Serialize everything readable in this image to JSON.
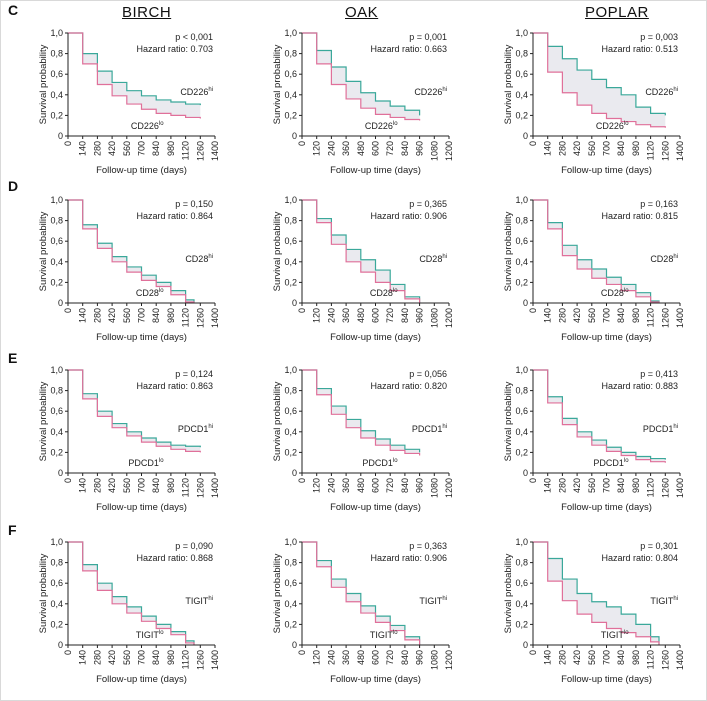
{
  "column_titles": [
    "BIRCH",
    "OAK",
    "POPLAR"
  ],
  "row_letters": [
    "C",
    "D",
    "E",
    "F"
  ],
  "colors": {
    "hi": "#3aa89a",
    "lo": "#e0709a",
    "band": "#dcdce4",
    "axis": "#222222"
  },
  "chart_data": [
    {
      "type": "line",
      "panel": "C-BIRCH",
      "ylabel": "Survival probability",
      "xlabel": "Follow-up time (days)",
      "xticks": [
        0,
        140,
        280,
        420,
        560,
        700,
        840,
        980,
        1120,
        1260,
        1400
      ],
      "yticks": [
        0,
        0.2,
        0.4,
        0.6,
        0.8,
        1.0
      ],
      "xlim": [
        0,
        1400
      ],
      "ylim": [
        0,
        1.0
      ],
      "p_text": "p  < 0,001",
      "hr_text": "Hazard ratio: 0.703",
      "hi_base": "CD226",
      "hi_sup": "hi",
      "lo_base": "CD226",
      "lo_sup": "lo",
      "series": [
        {
          "name": "CD226hi",
          "x": [
            0,
            140,
            280,
            420,
            560,
            700,
            840,
            980,
            1120,
            1260
          ],
          "y": [
            1.0,
            0.8,
            0.63,
            0.52,
            0.44,
            0.39,
            0.35,
            0.33,
            0.31,
            0.3
          ]
        },
        {
          "name": "CD226lo",
          "x": [
            0,
            140,
            280,
            420,
            560,
            700,
            840,
            980,
            1120,
            1260
          ],
          "y": [
            1.0,
            0.7,
            0.5,
            0.39,
            0.31,
            0.26,
            0.22,
            0.2,
            0.18,
            0.17
          ]
        }
      ]
    },
    {
      "type": "line",
      "panel": "C-OAK",
      "ylabel": "Survival probability",
      "xlabel": "Follow-up time (days)",
      "xticks": [
        0,
        120,
        240,
        360,
        480,
        600,
        720,
        840,
        960,
        1080,
        1200
      ],
      "yticks": [
        0,
        0.2,
        0.4,
        0.6,
        0.8,
        1.0
      ],
      "xlim": [
        0,
        1200
      ],
      "ylim": [
        0,
        1.0
      ],
      "p_text": "p  = 0,001",
      "hr_text": "Hazard ratio: 0.663",
      "hi_base": "CD226",
      "hi_sup": "hi",
      "lo_base": "CD226",
      "lo_sup": "lo",
      "series": [
        {
          "name": "CD226hi",
          "x": [
            0,
            120,
            240,
            360,
            480,
            600,
            720,
            840,
            960
          ],
          "y": [
            1.0,
            0.83,
            0.67,
            0.53,
            0.42,
            0.34,
            0.29,
            0.25,
            0.2
          ]
        },
        {
          "name": "CD226lo",
          "x": [
            0,
            120,
            240,
            360,
            480,
            600,
            720,
            840,
            960
          ],
          "y": [
            1.0,
            0.7,
            0.5,
            0.36,
            0.27,
            0.21,
            0.18,
            0.16,
            0.15
          ]
        }
      ]
    },
    {
      "type": "line",
      "panel": "C-POPLAR",
      "ylabel": "Survival probability",
      "xlabel": "Follow-up time (days)",
      "xticks": [
        0,
        140,
        280,
        420,
        560,
        700,
        840,
        980,
        1120,
        1260,
        1400
      ],
      "yticks": [
        0,
        0.2,
        0.4,
        0.6,
        0.8,
        1.0
      ],
      "xlim": [
        0,
        1400
      ],
      "ylim": [
        0,
        1.0
      ],
      "p_text": "p  = 0,003",
      "hr_text": "Hazard ratio: 0.513",
      "hi_base": "CD226",
      "hi_sup": "hi",
      "lo_base": "CD226",
      "lo_sup": "lo",
      "series": [
        {
          "name": "CD226hi",
          "x": [
            0,
            140,
            280,
            420,
            560,
            700,
            840,
            980,
            1120,
            1260
          ],
          "y": [
            1.0,
            0.87,
            0.75,
            0.64,
            0.55,
            0.47,
            0.4,
            0.28,
            0.22,
            0.2
          ]
        },
        {
          "name": "CD226lo",
          "x": [
            0,
            140,
            280,
            420,
            560,
            700,
            840,
            980,
            1120,
            1260
          ],
          "y": [
            1.0,
            0.62,
            0.42,
            0.3,
            0.22,
            0.17,
            0.14,
            0.11,
            0.09,
            0.08
          ]
        }
      ]
    },
    {
      "type": "line",
      "panel": "D-BIRCH",
      "ylabel": "Survival probability",
      "xlabel": "Follow-up time (days)",
      "xticks": [
        0,
        140,
        280,
        420,
        560,
        700,
        840,
        980,
        1120,
        1260,
        1400
      ],
      "yticks": [
        0,
        0.2,
        0.4,
        0.6,
        0.8,
        1.0
      ],
      "xlim": [
        0,
        1400
      ],
      "ylim": [
        0,
        1.0
      ],
      "p_text": "p  = 0,150",
      "hr_text": "Hazard ratio: 0.864",
      "hi_base": "CD28",
      "hi_sup": "hi",
      "lo_base": "CD28",
      "lo_sup": "lo",
      "series": [
        {
          "name": "CD28hi",
          "x": [
            0,
            140,
            280,
            420,
            560,
            700,
            840,
            980,
            1120,
            1200
          ],
          "y": [
            1.0,
            0.76,
            0.58,
            0.45,
            0.35,
            0.27,
            0.2,
            0.12,
            0.03,
            0.0
          ]
        },
        {
          "name": "CD28lo",
          "x": [
            0,
            140,
            280,
            420,
            560,
            700,
            840,
            980,
            1120,
            1200
          ],
          "y": [
            1.0,
            0.72,
            0.53,
            0.4,
            0.3,
            0.22,
            0.16,
            0.08,
            0.01,
            0.0
          ]
        }
      ]
    },
    {
      "type": "line",
      "panel": "D-OAK",
      "ylabel": "Survival probability",
      "xlabel": "Follow-up time (days)",
      "xticks": [
        0,
        120,
        240,
        360,
        480,
        600,
        720,
        840,
        960,
        1080,
        1200
      ],
      "yticks": [
        0,
        0.2,
        0.4,
        0.6,
        0.8,
        1.0
      ],
      "xlim": [
        0,
        1200
      ],
      "ylim": [
        0,
        1.0
      ],
      "p_text": "p  = 0,365",
      "hr_text": "Hazard ratio: 0.906",
      "hi_base": "CD28",
      "hi_sup": "hi",
      "lo_base": "CD28",
      "lo_sup": "lo",
      "series": [
        {
          "name": "CD28hi",
          "x": [
            0,
            120,
            240,
            360,
            480,
            600,
            720,
            840,
            960
          ],
          "y": [
            1.0,
            0.82,
            0.66,
            0.52,
            0.42,
            0.32,
            0.18,
            0.06,
            0.0
          ]
        },
        {
          "name": "CD28lo",
          "x": [
            0,
            120,
            240,
            360,
            480,
            600,
            720,
            840,
            960
          ],
          "y": [
            1.0,
            0.78,
            0.57,
            0.4,
            0.3,
            0.2,
            0.12,
            0.04,
            0.0
          ]
        }
      ]
    },
    {
      "type": "line",
      "panel": "D-POPLAR",
      "ylabel": "Survival probability",
      "xlabel": "Follow-up time (days)",
      "xticks": [
        0,
        140,
        280,
        420,
        560,
        700,
        840,
        980,
        1120,
        1260,
        1400
      ],
      "yticks": [
        0,
        0.2,
        0.4,
        0.6,
        0.8,
        1.0
      ],
      "xlim": [
        0,
        1400
      ],
      "ylim": [
        0,
        1.0
      ],
      "p_text": "p  = 0,163",
      "hr_text": "Hazard ratio: 0.815",
      "hi_base": "CD28",
      "hi_sup": "hi",
      "lo_base": "CD28",
      "lo_sup": "lo",
      "series": [
        {
          "name": "CD28hi",
          "x": [
            0,
            140,
            280,
            420,
            560,
            700,
            840,
            980,
            1120,
            1200
          ],
          "y": [
            1.0,
            0.78,
            0.56,
            0.42,
            0.33,
            0.25,
            0.18,
            0.1,
            0.02,
            0.0
          ]
        },
        {
          "name": "CD28lo",
          "x": [
            0,
            140,
            280,
            420,
            560,
            700,
            840,
            980,
            1120,
            1200
          ],
          "y": [
            1.0,
            0.72,
            0.46,
            0.33,
            0.24,
            0.18,
            0.12,
            0.06,
            0.01,
            0.0
          ]
        }
      ]
    },
    {
      "type": "line",
      "panel": "E-BIRCH",
      "ylabel": "Survival probability",
      "xlabel": "Follow-up time (days)",
      "xticks": [
        0,
        140,
        280,
        420,
        560,
        700,
        840,
        980,
        1120,
        1260,
        1400
      ],
      "yticks": [
        0,
        0.2,
        0.4,
        0.6,
        0.8,
        1.0
      ],
      "xlim": [
        0,
        1400
      ],
      "ylim": [
        0,
        1.0
      ],
      "p_text": "p  = 0,124",
      "hr_text": "Hazard ratio: 0.863",
      "hi_base": "PDCD1",
      "hi_sup": "hi",
      "lo_base": "PDCD1",
      "lo_sup": "lo",
      "series": [
        {
          "name": "PDCD1hi",
          "x": [
            0,
            140,
            280,
            420,
            560,
            700,
            840,
            980,
            1120,
            1260
          ],
          "y": [
            1.0,
            0.77,
            0.6,
            0.48,
            0.4,
            0.34,
            0.3,
            0.27,
            0.26,
            0.25
          ]
        },
        {
          "name": "PDCD1lo",
          "x": [
            0,
            140,
            280,
            420,
            560,
            700,
            840,
            980,
            1120,
            1260
          ],
          "y": [
            1.0,
            0.72,
            0.55,
            0.44,
            0.36,
            0.3,
            0.26,
            0.23,
            0.21,
            0.2
          ]
        }
      ]
    },
    {
      "type": "line",
      "panel": "E-OAK",
      "ylabel": "Survival probability",
      "xlabel": "Follow-up time (days)",
      "xticks": [
        0,
        120,
        240,
        360,
        480,
        600,
        720,
        840,
        960,
        1080,
        1200
      ],
      "yticks": [
        0,
        0.2,
        0.4,
        0.6,
        0.8,
        1.0
      ],
      "xlim": [
        0,
        1200
      ],
      "ylim": [
        0,
        1.0
      ],
      "p_text": "p  = 0,056",
      "hr_text": "Hazard ratio: 0.820",
      "hi_base": "PDCD1",
      "hi_sup": "hi",
      "lo_base": "PDCD1",
      "lo_sup": "lo",
      "series": [
        {
          "name": "PDCD1hi",
          "x": [
            0,
            120,
            240,
            360,
            480,
            600,
            720,
            840,
            960
          ],
          "y": [
            1.0,
            0.82,
            0.65,
            0.52,
            0.41,
            0.33,
            0.27,
            0.23,
            0.2
          ]
        },
        {
          "name": "PDCD1lo",
          "x": [
            0,
            120,
            240,
            360,
            480,
            600,
            720,
            840,
            960
          ],
          "y": [
            1.0,
            0.76,
            0.57,
            0.44,
            0.34,
            0.27,
            0.22,
            0.19,
            0.17
          ]
        }
      ]
    },
    {
      "type": "line",
      "panel": "E-POPLAR",
      "ylabel": "Survival probability",
      "xlabel": "Follow-up time (days)",
      "xticks": [
        0,
        140,
        280,
        420,
        560,
        700,
        840,
        980,
        1120,
        1260,
        1400
      ],
      "yticks": [
        0,
        0.2,
        0.4,
        0.6,
        0.8,
        1.0
      ],
      "xlim": [
        0,
        1400
      ],
      "ylim": [
        0,
        1.0
      ],
      "p_text": "p  = 0,413",
      "hr_text": "Hazard ratio: 0.883",
      "hi_base": "PDCD1",
      "hi_sup": "hi",
      "lo_base": "PDCD1",
      "lo_sup": "lo",
      "series": [
        {
          "name": "PDCD1hi",
          "x": [
            0,
            140,
            280,
            420,
            560,
            700,
            840,
            980,
            1120,
            1260
          ],
          "y": [
            1.0,
            0.74,
            0.53,
            0.4,
            0.32,
            0.25,
            0.2,
            0.16,
            0.14,
            0.13
          ]
        },
        {
          "name": "PDCD1lo",
          "x": [
            0,
            140,
            280,
            420,
            560,
            700,
            840,
            980,
            1120,
            1260
          ],
          "y": [
            1.0,
            0.68,
            0.47,
            0.35,
            0.27,
            0.21,
            0.17,
            0.13,
            0.11,
            0.1
          ]
        }
      ]
    },
    {
      "type": "line",
      "panel": "F-BIRCH",
      "ylabel": "Survival probability",
      "xlabel": "Follow-up time (days)",
      "xticks": [
        0,
        140,
        280,
        420,
        560,
        700,
        840,
        980,
        1120,
        1260,
        1400
      ],
      "yticks": [
        0,
        0.2,
        0.4,
        0.6,
        0.8,
        1.0
      ],
      "xlim": [
        0,
        1400
      ],
      "ylim": [
        0,
        1.0
      ],
      "p_text": "p  = 0,090",
      "hr_text": "Hazard ratio: 0.868",
      "hi_base": "TIGIT",
      "hi_sup": "hi",
      "lo_base": "TIGIT",
      "lo_sup": "lo",
      "series": [
        {
          "name": "TIGIThi",
          "x": [
            0,
            140,
            280,
            420,
            560,
            700,
            840,
            980,
            1120,
            1200
          ],
          "y": [
            1.0,
            0.78,
            0.6,
            0.47,
            0.37,
            0.28,
            0.2,
            0.13,
            0.04,
            0.0
          ]
        },
        {
          "name": "TIGITlo",
          "x": [
            0,
            140,
            280,
            420,
            560,
            700,
            840,
            980,
            1120,
            1200
          ],
          "y": [
            1.0,
            0.72,
            0.53,
            0.4,
            0.31,
            0.23,
            0.16,
            0.1,
            0.02,
            0.0
          ]
        }
      ]
    },
    {
      "type": "line",
      "panel": "F-OAK",
      "ylabel": "Survival probability",
      "xlabel": "Follow-up time (days)",
      "xticks": [
        0,
        120,
        240,
        360,
        480,
        600,
        720,
        840,
        960,
        1080,
        1200
      ],
      "yticks": [
        0,
        0.2,
        0.4,
        0.6,
        0.8,
        1.0
      ],
      "xlim": [
        0,
        1200
      ],
      "ylim": [
        0,
        1.0
      ],
      "p_text": "p  = 0,363",
      "hr_text": "Hazard ratio: 0.906",
      "hi_base": "TIGIT",
      "hi_sup": "hi",
      "lo_base": "TIGIT",
      "lo_sup": "lo",
      "series": [
        {
          "name": "TIGIThi",
          "x": [
            0,
            120,
            240,
            360,
            480,
            600,
            720,
            840,
            960
          ],
          "y": [
            1.0,
            0.82,
            0.64,
            0.5,
            0.38,
            0.28,
            0.19,
            0.08,
            0.0
          ]
        },
        {
          "name": "TIGITlo",
          "x": [
            0,
            120,
            240,
            360,
            480,
            600,
            720,
            840,
            960
          ],
          "y": [
            1.0,
            0.76,
            0.56,
            0.42,
            0.31,
            0.22,
            0.14,
            0.05,
            0.0
          ]
        }
      ]
    },
    {
      "type": "line",
      "panel": "F-POPLAR",
      "ylabel": "Survival probability",
      "xlabel": "Follow-up time (days)",
      "xticks": [
        0,
        140,
        280,
        420,
        560,
        700,
        840,
        980,
        1120,
        1260,
        1400
      ],
      "yticks": [
        0,
        0.2,
        0.4,
        0.6,
        0.8,
        1.0
      ],
      "xlim": [
        0,
        1400
      ],
      "ylim": [
        0,
        1.0
      ],
      "p_text": "p  = 0,301",
      "hr_text": "Hazard ratio: 0.804",
      "hi_base": "TIGIT",
      "hi_sup": "hi",
      "lo_base": "TIGIT",
      "lo_sup": "lo",
      "series": [
        {
          "name": "TIGIThi",
          "x": [
            0,
            140,
            280,
            420,
            560,
            700,
            840,
            980,
            1120,
            1200
          ],
          "y": [
            1.0,
            0.84,
            0.64,
            0.5,
            0.42,
            0.37,
            0.3,
            0.2,
            0.08,
            0.0
          ]
        },
        {
          "name": "TIGITlo",
          "x": [
            0,
            140,
            280,
            420,
            560,
            700,
            840,
            980,
            1120,
            1200
          ],
          "y": [
            1.0,
            0.62,
            0.43,
            0.3,
            0.22,
            0.16,
            0.12,
            0.08,
            0.03,
            0.0
          ]
        }
      ]
    }
  ]
}
